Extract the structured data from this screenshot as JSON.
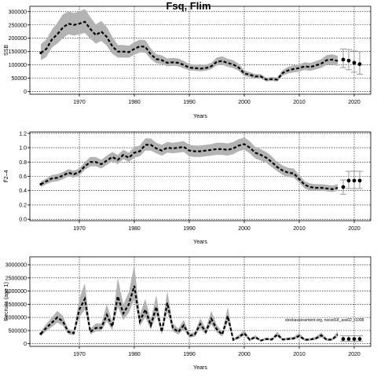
{
  "title": "Fsq, Flim",
  "annotation": "stockassessment.org, nscod18_ass02_r1008",
  "colors": {
    "band": "#b3b3b3",
    "line": "#000000",
    "grid": "#000000",
    "errorbar": "#9a9a9a"
  },
  "chart_data": [
    {
      "type": "line",
      "id": "ssb",
      "xlabel": "Years",
      "ylabel": "SSB",
      "xlim": [
        1961,
        2023
      ],
      "ylim": [
        -10000,
        320000
      ],
      "xticks": [
        1970,
        1980,
        1990,
        2000,
        2010,
        2020
      ],
      "yticks": [
        0,
        50000,
        100000,
        150000,
        200000,
        250000,
        300000
      ],
      "grid": true,
      "x": [
        1963,
        1964,
        1965,
        1966,
        1967,
        1968,
        1969,
        1970,
        1971,
        1972,
        1973,
        1974,
        1975,
        1976,
        1977,
        1978,
        1979,
        1980,
        1981,
        1982,
        1983,
        1984,
        1985,
        1986,
        1987,
        1988,
        1989,
        1990,
        1991,
        1992,
        1993,
        1994,
        1995,
        1996,
        1997,
        1998,
        1999,
        2000,
        2001,
        2002,
        2003,
        2004,
        2005,
        2006,
        2007,
        2008,
        2009,
        2010,
        2011,
        2012,
        2013,
        2014,
        2015,
        2016,
        2017
      ],
      "estimate": [
        145000,
        160000,
        195000,
        215000,
        240000,
        255000,
        250000,
        255000,
        262000,
        235000,
        212000,
        225000,
        205000,
        170000,
        150000,
        150000,
        148000,
        160000,
        170000,
        168000,
        140000,
        122000,
        118000,
        108000,
        110000,
        108000,
        100000,
        90000,
        88000,
        86000,
        88000,
        95000,
        112000,
        115000,
        107000,
        102000,
        90000,
        68000,
        63000,
        57000,
        57000,
        45000,
        47000,
        45000,
        70000,
        80000,
        85000,
        88000,
        95000,
        92000,
        98000,
        105000,
        118000,
        120000,
        115000
      ],
      "lower": [
        118000,
        130000,
        165000,
        180000,
        200000,
        215000,
        210000,
        215000,
        220000,
        198000,
        180000,
        190000,
        172000,
        142000,
        128000,
        128000,
        127000,
        138000,
        147000,
        146000,
        122000,
        106000,
        103000,
        95000,
        97000,
        95000,
        87000,
        80000,
        78000,
        76000,
        78000,
        84000,
        98000,
        100000,
        93000,
        88000,
        78000,
        58000,
        54000,
        49000,
        49000,
        38000,
        40000,
        38000,
        60000,
        68000,
        72000,
        75000,
        81000,
        78000,
        83000,
        89000,
        100000,
        101000,
        96000
      ],
      "upper": [
        178000,
        195000,
        232000,
        258000,
        290000,
        300000,
        295000,
        300000,
        310000,
        280000,
        252000,
        265000,
        242000,
        205000,
        175000,
        175000,
        172000,
        185000,
        195000,
        193000,
        162000,
        140000,
        136000,
        124000,
        126000,
        124000,
        115000,
        103000,
        101000,
        99000,
        101000,
        108000,
        128000,
        132000,
        123000,
        118000,
        104000,
        79000,
        73000,
        66000,
        66000,
        52000,
        55000,
        53000,
        81000,
        93000,
        98000,
        102000,
        110000,
        107000,
        114000,
        122000,
        137000,
        140000,
        134000
      ],
      "forecast": {
        "x": [
          2018,
          2019,
          2020,
          2021
        ],
        "values": [
          120000,
          116000,
          108000,
          103000
        ],
        "lower": [
          90000,
          82000,
          73000,
          65000
        ],
        "upper": [
          160000,
          158000,
          152000,
          150000
        ]
      }
    },
    {
      "type": "line",
      "id": "fbar",
      "xlabel": "Years",
      "ylabel": "F̄2–4",
      "xlim": [
        1961,
        2023
      ],
      "ylim": [
        -0.02,
        1.22
      ],
      "xticks": [
        1970,
        1980,
        1990,
        2000,
        2010,
        2020
      ],
      "yticks": [
        0.0,
        0.2,
        0.4,
        0.6,
        0.8,
        1.0,
        1.2
      ],
      "ytick_labels": [
        "0.0",
        "0.2",
        "0.4",
        "0.6",
        "0.8",
        "1.0",
        "1.2"
      ],
      "grid": true,
      "x": [
        1963,
        1964,
        1965,
        1966,
        1967,
        1968,
        1969,
        1970,
        1971,
        1972,
        1973,
        1974,
        1975,
        1976,
        1977,
        1978,
        1979,
        1980,
        1981,
        1982,
        1983,
        1984,
        1985,
        1986,
        1987,
        1988,
        1989,
        1990,
        1991,
        1992,
        1993,
        1994,
        1995,
        1996,
        1997,
        1998,
        1999,
        2000,
        2001,
        2002,
        2003,
        2004,
        2005,
        2006,
        2007,
        2008,
        2009,
        2010,
        2011,
        2012,
        2013,
        2014,
        2015,
        2016,
        2017
      ],
      "estimate": [
        0.49,
        0.53,
        0.57,
        0.58,
        0.61,
        0.65,
        0.63,
        0.66,
        0.74,
        0.8,
        0.8,
        0.77,
        0.82,
        0.87,
        0.83,
        0.9,
        0.86,
        0.93,
        0.95,
        1.04,
        1.04,
        0.99,
        0.96,
        1.0,
        0.99,
        1.0,
        1.01,
        0.96,
        0.95,
        0.95,
        0.96,
        0.97,
        0.98,
        0.98,
        0.97,
        0.99,
        1.03,
        1.05,
        1.0,
        0.93,
        0.9,
        0.86,
        0.8,
        0.73,
        0.68,
        0.65,
        0.64,
        0.56,
        0.48,
        0.45,
        0.44,
        0.44,
        0.43,
        0.42,
        0.44
      ],
      "lower": [
        0.45,
        0.49,
        0.52,
        0.53,
        0.56,
        0.6,
        0.58,
        0.61,
        0.69,
        0.74,
        0.74,
        0.71,
        0.76,
        0.81,
        0.77,
        0.84,
        0.8,
        0.86,
        0.88,
        0.96,
        0.96,
        0.92,
        0.89,
        0.93,
        0.92,
        0.93,
        0.94,
        0.88,
        0.87,
        0.87,
        0.88,
        0.89,
        0.9,
        0.9,
        0.89,
        0.91,
        0.95,
        0.97,
        0.92,
        0.85,
        0.82,
        0.79,
        0.73,
        0.67,
        0.62,
        0.59,
        0.58,
        0.51,
        0.43,
        0.4,
        0.4,
        0.4,
        0.39,
        0.38,
        0.4
      ],
      "upper": [
        0.53,
        0.57,
        0.62,
        0.63,
        0.66,
        0.7,
        0.68,
        0.71,
        0.8,
        0.87,
        0.87,
        0.83,
        0.89,
        0.94,
        0.9,
        0.97,
        0.93,
        1.01,
        1.03,
        1.13,
        1.13,
        1.07,
        1.04,
        1.08,
        1.07,
        1.08,
        1.09,
        1.04,
        1.03,
        1.03,
        1.04,
        1.05,
        1.07,
        1.07,
        1.06,
        1.08,
        1.12,
        1.14,
        1.09,
        1.01,
        0.98,
        0.94,
        0.88,
        0.8,
        0.75,
        0.72,
        0.71,
        0.62,
        0.53,
        0.5,
        0.49,
        0.49,
        0.48,
        0.47,
        0.49
      ],
      "forecast": {
        "x": [
          2018,
          2019,
          2020,
          2021
        ],
        "values": [
          0.45,
          0.54,
          0.54,
          0.54
        ],
        "lower": [
          0.35,
          0.43,
          0.43,
          0.43
        ],
        "upper": [
          0.55,
          0.67,
          0.67,
          0.67
        ]
      }
    },
    {
      "type": "line",
      "id": "recruitment",
      "xlabel": "Years",
      "ylabel": "Recruits (age 1)",
      "xlim": [
        1961,
        2023
      ],
      "ylim": [
        -100000,
        3300000
      ],
      "xticks": [
        1970,
        1980,
        1990,
        2000,
        2010,
        2020
      ],
      "yticks": [
        0,
        500000,
        1000000,
        1500000,
        2000000,
        2500000,
        3000000
      ],
      "grid": true,
      "x": [
        1963,
        1964,
        1965,
        1966,
        1967,
        1968,
        1969,
        1970,
        1971,
        1972,
        1973,
        1974,
        1975,
        1976,
        1977,
        1978,
        1979,
        1980,
        1981,
        1982,
        1983,
        1984,
        1985,
        1986,
        1987,
        1988,
        1989,
        1990,
        1991,
        1992,
        1993,
        1994,
        1995,
        1996,
        1997,
        1998,
        1999,
        2000,
        2001,
        2002,
        2003,
        2004,
        2005,
        2006,
        2007,
        2008,
        2009,
        2010,
        2011,
        2012,
        2013,
        2014,
        2015,
        2016,
        2017
      ],
      "estimate": [
        380000,
        600000,
        800000,
        1000000,
        850000,
        450000,
        400000,
        1300000,
        1700000,
        450000,
        600000,
        600000,
        1100000,
        650000,
        1800000,
        1150000,
        1500000,
        2200000,
        850000,
        1300000,
        700000,
        1400000,
        450000,
        1550000,
        600000,
        450000,
        700000,
        300000,
        350000,
        750000,
        450000,
        950000,
        550000,
        350000,
        1050000,
        150000,
        250000,
        400000,
        150000,
        250000,
        120000,
        180000,
        160000,
        350000,
        160000,
        180000,
        200000,
        300000,
        150000,
        160000,
        200000,
        320000,
        150000,
        160000,
        350000
      ],
      "lower": [
        300000,
        480000,
        640000,
        800000,
        680000,
        360000,
        320000,
        1000000,
        1300000,
        350000,
        470000,
        470000,
        860000,
        510000,
        1400000,
        900000,
        1170000,
        1700000,
        660000,
        1000000,
        540000,
        1090000,
        350000,
        1200000,
        470000,
        350000,
        540000,
        230000,
        270000,
        580000,
        350000,
        740000,
        430000,
        270000,
        820000,
        110000,
        190000,
        310000,
        110000,
        190000,
        90000,
        140000,
        120000,
        270000,
        120000,
        140000,
        150000,
        230000,
        110000,
        120000,
        150000,
        240000,
        110000,
        120000,
        260000
      ],
      "upper": [
        480000,
        750000,
        1000000,
        1250000,
        1060000,
        560000,
        500000,
        1700000,
        2300000,
        580000,
        770000,
        770000,
        1500000,
        840000,
        2500000,
        1500000,
        1950000,
        3000000,
        1100000,
        1700000,
        910000,
        1850000,
        580000,
        2000000,
        770000,
        580000,
        910000,
        390000,
        450000,
        970000,
        580000,
        1250000,
        710000,
        450000,
        1400000,
        200000,
        330000,
        520000,
        200000,
        330000,
        160000,
        240000,
        210000,
        460000,
        210000,
        240000,
        260000,
        400000,
        200000,
        210000,
        260000,
        430000,
        200000,
        210000,
        480000
      ],
      "forecast": {
        "x": [
          2018,
          2019,
          2020,
          2021
        ],
        "values": [
          180000,
          180000,
          180000,
          180000
        ],
        "lower": [
          90000,
          90000,
          90000,
          90000
        ],
        "upper": [
          300000,
          300000,
          300000,
          300000
        ]
      }
    }
  ]
}
